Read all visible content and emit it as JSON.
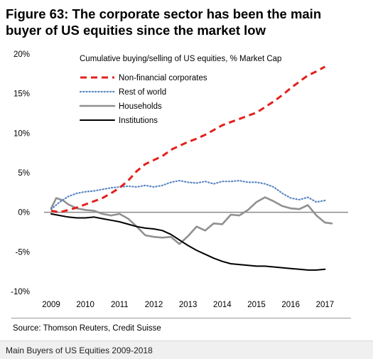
{
  "figure": {
    "title_line1": "Figure 63: The corporate sector has been the main",
    "title_line2": "buyer of US equities since the market low",
    "source": "Source: Thomson Reuters, Credit Suisse",
    "caption": "Main Buyers of US Equities 2009-2018"
  },
  "chart_data": {
    "type": "line",
    "title": "Cumulative buying/selling of US equities, % Market Cap",
    "xlabel": "",
    "ylabel": "",
    "xlim": [
      2009,
      2017.2
    ],
    "ylim": [
      -10,
      20
    ],
    "x_ticks": [
      "2009",
      "2010",
      "2011",
      "2012",
      "2013",
      "2014",
      "2015",
      "2016",
      "2017"
    ],
    "y_ticks": [
      "20%",
      "15%",
      "10%",
      "5%",
      "0%",
      "-5%",
      "-10%"
    ],
    "y_tick_values": [
      20,
      15,
      10,
      5,
      0,
      -5,
      -10
    ],
    "grid": false,
    "legend_position": "top-left",
    "series": [
      {
        "name": "Non-financial corporates",
        "color": "#e3211c",
        "style": "dashed",
        "points": [
          [
            2009.0,
            0.2
          ],
          [
            2009.25,
            0.0
          ],
          [
            2009.5,
            0.3
          ],
          [
            2009.75,
            0.6
          ],
          [
            2010.0,
            1.0
          ],
          [
            2010.25,
            1.4
          ],
          [
            2010.5,
            1.8
          ],
          [
            2010.75,
            2.4
          ],
          [
            2011.0,
            3.1
          ],
          [
            2011.25,
            4.0
          ],
          [
            2011.5,
            5.2
          ],
          [
            2011.75,
            6.1
          ],
          [
            2012.0,
            6.6
          ],
          [
            2012.25,
            7.1
          ],
          [
            2012.5,
            7.9
          ],
          [
            2012.75,
            8.4
          ],
          [
            2013.0,
            8.9
          ],
          [
            2013.25,
            9.3
          ],
          [
            2013.5,
            9.8
          ],
          [
            2013.75,
            10.4
          ],
          [
            2014.0,
            11.0
          ],
          [
            2014.25,
            11.4
          ],
          [
            2014.5,
            11.8
          ],
          [
            2014.75,
            12.2
          ],
          [
            2015.0,
            12.6
          ],
          [
            2015.25,
            13.3
          ],
          [
            2015.5,
            14.0
          ],
          [
            2015.75,
            14.8
          ],
          [
            2016.0,
            15.7
          ],
          [
            2016.25,
            16.5
          ],
          [
            2016.5,
            17.3
          ],
          [
            2016.75,
            17.8
          ],
          [
            2017.0,
            18.4
          ]
        ]
      },
      {
        "name": "Rest of world",
        "color": "#5b87c5",
        "style": "dotted",
        "points": [
          [
            2009.0,
            0.4
          ],
          [
            2009.25,
            1.3
          ],
          [
            2009.5,
            2.0
          ],
          [
            2009.75,
            2.4
          ],
          [
            2010.0,
            2.6
          ],
          [
            2010.25,
            2.7
          ],
          [
            2010.5,
            2.9
          ],
          [
            2010.75,
            3.1
          ],
          [
            2011.0,
            3.2
          ],
          [
            2011.25,
            3.3
          ],
          [
            2011.5,
            3.2
          ],
          [
            2011.75,
            3.4
          ],
          [
            2012.0,
            3.2
          ],
          [
            2012.25,
            3.4
          ],
          [
            2012.5,
            3.8
          ],
          [
            2012.75,
            4.0
          ],
          [
            2013.0,
            3.8
          ],
          [
            2013.25,
            3.7
          ],
          [
            2013.5,
            3.9
          ],
          [
            2013.75,
            3.6
          ],
          [
            2014.0,
            3.9
          ],
          [
            2014.25,
            3.9
          ],
          [
            2014.5,
            4.0
          ],
          [
            2014.75,
            3.8
          ],
          [
            2015.0,
            3.8
          ],
          [
            2015.25,
            3.6
          ],
          [
            2015.5,
            3.2
          ],
          [
            2015.75,
            2.4
          ],
          [
            2016.0,
            1.8
          ],
          [
            2016.25,
            1.6
          ],
          [
            2016.5,
            1.9
          ],
          [
            2016.75,
            1.3
          ],
          [
            2017.0,
            1.5
          ]
        ]
      },
      {
        "name": "Households",
        "color": "#909090",
        "style": "solid",
        "points": [
          [
            2009.0,
            0.5
          ],
          [
            2009.15,
            1.8
          ],
          [
            2009.35,
            1.5
          ],
          [
            2009.5,
            1.0
          ],
          [
            2009.75,
            0.5
          ],
          [
            2010.0,
            0.3
          ],
          [
            2010.25,
            0.2
          ],
          [
            2010.5,
            -0.2
          ],
          [
            2010.75,
            -0.4
          ],
          [
            2011.0,
            -0.2
          ],
          [
            2011.25,
            -0.8
          ],
          [
            2011.5,
            -1.8
          ],
          [
            2011.75,
            -2.9
          ],
          [
            2012.0,
            -3.1
          ],
          [
            2012.25,
            -3.2
          ],
          [
            2012.5,
            -3.1
          ],
          [
            2012.75,
            -4.0
          ],
          [
            2013.0,
            -3.0
          ],
          [
            2013.25,
            -1.8
          ],
          [
            2013.5,
            -2.3
          ],
          [
            2013.75,
            -1.4
          ],
          [
            2014.0,
            -1.5
          ],
          [
            2014.25,
            -0.3
          ],
          [
            2014.5,
            -0.4
          ],
          [
            2014.75,
            0.3
          ],
          [
            2015.0,
            1.3
          ],
          [
            2015.25,
            1.9
          ],
          [
            2015.5,
            1.4
          ],
          [
            2015.75,
            0.8
          ],
          [
            2016.0,
            0.5
          ],
          [
            2016.25,
            0.4
          ],
          [
            2016.5,
            0.9
          ],
          [
            2016.75,
            -0.4
          ],
          [
            2017.0,
            -1.3
          ],
          [
            2017.2,
            -1.4
          ]
        ]
      },
      {
        "name": "Institutions",
        "color": "#000000",
        "style": "solid",
        "points": [
          [
            2009.0,
            -0.2
          ],
          [
            2009.25,
            -0.4
          ],
          [
            2009.5,
            -0.6
          ],
          [
            2009.75,
            -0.7
          ],
          [
            2010.0,
            -0.7
          ],
          [
            2010.25,
            -0.6
          ],
          [
            2010.5,
            -0.8
          ],
          [
            2010.75,
            -1.0
          ],
          [
            2011.0,
            -1.2
          ],
          [
            2011.25,
            -1.5
          ],
          [
            2011.5,
            -1.8
          ],
          [
            2011.75,
            -2.0
          ],
          [
            2012.0,
            -2.1
          ],
          [
            2012.25,
            -2.3
          ],
          [
            2012.5,
            -2.8
          ],
          [
            2012.75,
            -3.5
          ],
          [
            2013.0,
            -4.2
          ],
          [
            2013.25,
            -4.8
          ],
          [
            2013.5,
            -5.3
          ],
          [
            2013.75,
            -5.8
          ],
          [
            2014.0,
            -6.2
          ],
          [
            2014.25,
            -6.5
          ],
          [
            2014.5,
            -6.6
          ],
          [
            2014.75,
            -6.7
          ],
          [
            2015.0,
            -6.8
          ],
          [
            2015.25,
            -6.8
          ],
          [
            2015.5,
            -6.9
          ],
          [
            2015.75,
            -7.0
          ],
          [
            2016.0,
            -7.1
          ],
          [
            2016.25,
            -7.2
          ],
          [
            2016.5,
            -7.3
          ],
          [
            2016.75,
            -7.3
          ],
          [
            2017.0,
            -7.2
          ]
        ]
      }
    ]
  }
}
